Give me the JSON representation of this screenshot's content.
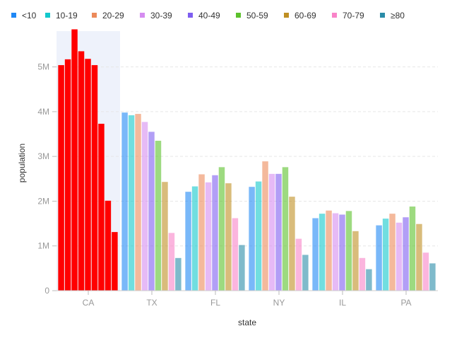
{
  "chart_data": {
    "type": "bar",
    "xlabel": "state",
    "ylabel": "population",
    "ylim": [
      0,
      5800000
    ],
    "yticks": [
      0,
      1000000,
      2000000,
      3000000,
      4000000,
      5000000
    ],
    "ytick_labels": [
      "0",
      "1M",
      "2M",
      "3M",
      "4M",
      "5M"
    ],
    "categories": [
      "CA",
      "TX",
      "FL",
      "NY",
      "IL",
      "PA"
    ],
    "highlighted_category": "CA",
    "highlight_color": "#ff0000",
    "grid": "horizontal",
    "legend_position": "top-left",
    "series": [
      {
        "name": "<10",
        "color": "#1f88f5",
        "values": [
          5040000,
          3980000,
          2210000,
          2320000,
          1620000,
          1460000
        ]
      },
      {
        "name": "10-19",
        "color": "#13c8cc",
        "values": [
          5170000,
          3920000,
          2330000,
          2440000,
          1720000,
          1610000
        ]
      },
      {
        "name": "20-29",
        "color": "#ec8a5a",
        "values": [
          5840000,
          3950000,
          2600000,
          2890000,
          1790000,
          1720000
        ]
      },
      {
        "name": "30-39",
        "color": "#d58cf0",
        "values": [
          5350000,
          3770000,
          2420000,
          2610000,
          1730000,
          1520000
        ]
      },
      {
        "name": "40-49",
        "color": "#7e5ef0",
        "values": [
          5180000,
          3550000,
          2580000,
          2610000,
          1700000,
          1640000
        ]
      },
      {
        "name": "50-59",
        "color": "#5cc12c",
        "values": [
          5040000,
          3350000,
          2760000,
          2760000,
          1780000,
          1880000
        ]
      },
      {
        "name": "60-69",
        "color": "#bf8f23",
        "values": [
          3730000,
          2430000,
          2400000,
          2100000,
          1330000,
          1490000
        ]
      },
      {
        "name": "70-79",
        "color": "#f983c8",
        "values": [
          2010000,
          1290000,
          1620000,
          1160000,
          730000,
          850000
        ]
      },
      {
        "name": "≥80",
        "color": "#2a8ca8",
        "values": [
          1310000,
          730000,
          1020000,
          800000,
          480000,
          610000
        ]
      }
    ]
  }
}
